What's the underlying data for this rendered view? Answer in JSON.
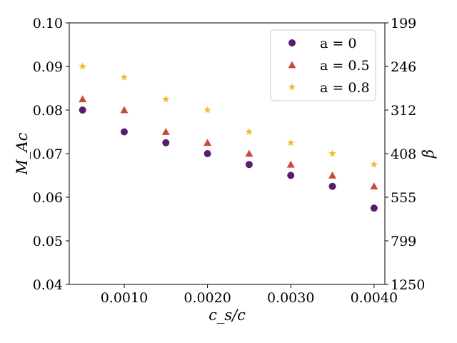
{
  "chart_data": {
    "type": "scatter",
    "xlabel": "c_s/c",
    "ylabel": "M_Ac",
    "y2label": "β",
    "xlim": [
      0.00034,
      0.00413
    ],
    "ylim": [
      0.04,
      0.1
    ],
    "x_ticks": [
      "0.0010",
      "0.0020",
      "0.0030",
      "0.0040"
    ],
    "x_tick_values": [
      0.001,
      0.002,
      0.003,
      0.004
    ],
    "y_ticks": [
      "0.04",
      "0.05",
      "0.06",
      "0.07",
      "0.08",
      "0.09",
      "0.10"
    ],
    "y_tick_values": [
      0.04,
      0.05,
      0.06,
      0.07,
      0.08,
      0.09,
      0.1
    ],
    "y2_ticks": [
      "1250",
      "799",
      "555",
      "408",
      "312",
      "246",
      "199"
    ],
    "grid": false,
    "legend_position": "top-right",
    "x": [
      0.0005,
      0.001,
      0.0015,
      0.002,
      0.0025,
      0.003,
      0.0035,
      0.004
    ],
    "series": [
      {
        "name": "a = 0",
        "marker": "circle",
        "color": "#5a1a6e",
        "values": [
          0.08,
          0.075,
          0.0725,
          0.07,
          0.0675,
          0.065,
          0.0625,
          0.0575
        ]
      },
      {
        "name": "a = 0.5",
        "marker": "triangle",
        "color": "#cc4a3c",
        "values": [
          0.0825,
          0.08,
          0.075,
          0.0725,
          0.07,
          0.0675,
          0.065,
          0.0625
        ]
      },
      {
        "name": "a = 0.8",
        "marker": "star",
        "color": "#f2b92b",
        "values": [
          0.09,
          0.0875,
          0.0825,
          0.08,
          0.075,
          0.0725,
          0.07,
          0.0675
        ]
      }
    ]
  }
}
